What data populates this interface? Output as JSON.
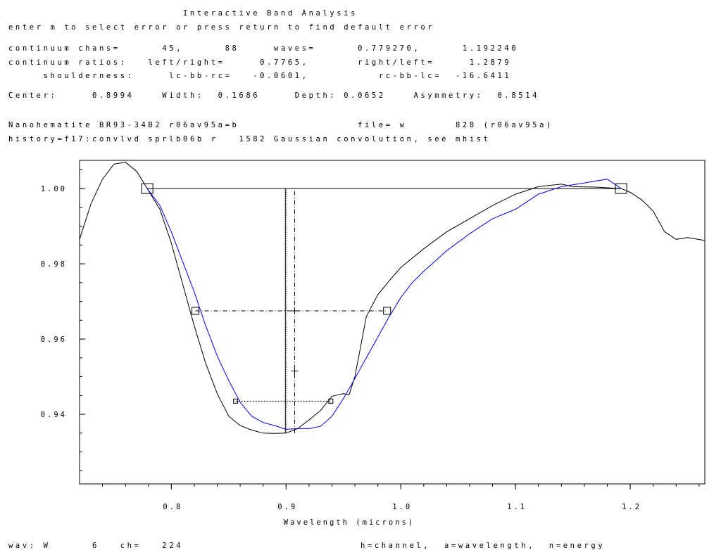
{
  "header": {
    "title": "Interactive Band Analysis",
    "prompt": "enter m to select error or press return to find default error",
    "line_chans": "continuum chans=      45,      88     waves=      0.779270,      1.192240",
    "line_ratios": "continuum ratios:   left/right=     0.7765,       right/left=     1.2879",
    "line_shoulder": "     shoulderness:     lc-bb-rc=   -0.0601,          rc-bb-lc=  -16.6411",
    "line_center": "Center:     0.8994    Width:  0.1686     Depth: 0.0652    Asymmetry:  0.8514",
    "line_sample": "Nanohematite BR93-34B2 r06av95a=b                 file= w       828 (r06av95a)",
    "line_history": "history=f17:convlvd sprlb06b r   1582 Gaussian convolution, see mhist"
  },
  "footer": {
    "left": "wav: W      6   ch=   224",
    "right": "h=channel,  a=wavelength,  n=energy"
  },
  "colors": {
    "blue": "#0000ee",
    "black": "#000000"
  },
  "chart_data": {
    "type": "line",
    "xlabel": "Wavelength (microns)",
    "xlim": [
      0.72,
      1.265
    ],
    "ylim": [
      0.9215,
      1.0075
    ],
    "x_ticks": [
      0.8,
      0.9,
      1.0,
      1.1,
      1.2
    ],
    "x_tick_labels": [
      "0.8",
      "0.9",
      "1.0",
      "1.1",
      "1.2"
    ],
    "y_ticks": [
      0.94,
      0.96,
      0.98,
      1.0
    ],
    "y_tick_labels": [
      "0.94",
      "0.96",
      "0.98",
      "1.00"
    ],
    "series": [
      {
        "color": "#000000",
        "x": [
          0.72,
          0.73,
          0.74,
          0.75,
          0.76,
          0.77,
          0.779,
          0.79,
          0.8,
          0.81,
          0.82,
          0.83,
          0.84,
          0.85,
          0.86,
          0.87,
          0.88,
          0.89,
          0.9,
          0.91,
          0.92,
          0.93,
          0.94,
          0.95,
          0.955,
          0.96,
          0.965,
          0.97,
          0.98,
          0.99,
          1.0,
          1.02,
          1.04,
          1.06,
          1.08,
          1.1,
          1.12,
          1.14,
          1.15,
          1.17,
          1.192,
          1.2,
          1.21,
          1.22,
          1.23,
          1.24,
          1.25,
          1.265
        ],
        "y": [
          0.9865,
          0.996,
          1.0025,
          1.0065,
          1.007,
          1.0045,
          1.0,
          0.9945,
          0.9855,
          0.9745,
          0.9635,
          0.9535,
          0.9455,
          0.9395,
          0.937,
          0.9358,
          0.935,
          0.9349,
          0.935,
          0.9362,
          0.9385,
          0.941,
          0.9448,
          0.9455,
          0.9452,
          0.95,
          0.958,
          0.966,
          0.9718,
          0.9755,
          0.979,
          0.984,
          0.9885,
          0.992,
          0.9955,
          0.9985,
          1.0005,
          1.0012,
          1.0005,
          1.0004,
          1.0,
          0.999,
          0.997,
          0.994,
          0.9885,
          0.9865,
          0.987,
          0.9862
        ]
      },
      {
        "color": "#0000ee",
        "x": [
          0.779,
          0.79,
          0.8,
          0.81,
          0.82,
          0.83,
          0.84,
          0.85,
          0.86,
          0.87,
          0.88,
          0.89,
          0.9,
          0.91,
          0.92,
          0.93,
          0.94,
          0.95,
          0.96,
          0.97,
          0.98,
          0.99,
          1.0,
          1.01,
          1.02,
          1.04,
          1.06,
          1.08,
          1.1,
          1.12,
          1.14,
          1.16,
          1.18,
          1.192
        ],
        "y": [
          1.0,
          0.9955,
          0.9885,
          0.9805,
          0.9725,
          0.9635,
          0.9555,
          0.949,
          0.9432,
          0.9395,
          0.9378,
          0.937,
          0.936,
          0.9362,
          0.9362,
          0.9368,
          0.9395,
          0.9442,
          0.9495,
          0.955,
          0.9605,
          0.966,
          0.971,
          0.975,
          0.978,
          0.9835,
          0.988,
          0.992,
          0.9945,
          0.9985,
          1.0005,
          1.0015,
          1.0025,
          1.0
        ]
      }
    ],
    "continuum": {
      "x": [
        0.779,
        1.192
      ],
      "y": [
        1.0,
        1.0
      ]
    },
    "center_line": {
      "x": 0.8994,
      "y": [
        0.935,
        1.0
      ]
    },
    "center_dotted": {
      "x": 0.9005,
      "y": [
        0.935,
        1.0
      ]
    },
    "center_dashdot": {
      "x": 0.9075,
      "y": [
        0.935,
        1.0
      ]
    },
    "continuum_boxes": [
      {
        "x": 0.779,
        "y": 1.0
      },
      {
        "x": 1.192,
        "y": 1.0
      }
    ],
    "half_width": {
      "x": [
        0.821,
        0.988
      ],
      "y": 0.9675
    },
    "lower_level": {
      "x": [
        0.856,
        0.939
      ],
      "y": 0.9435
    },
    "crosses": [
      {
        "x": 0.9075,
        "y": 0.9675
      },
      {
        "x": 0.9075,
        "y": 0.9515
      }
    ]
  }
}
